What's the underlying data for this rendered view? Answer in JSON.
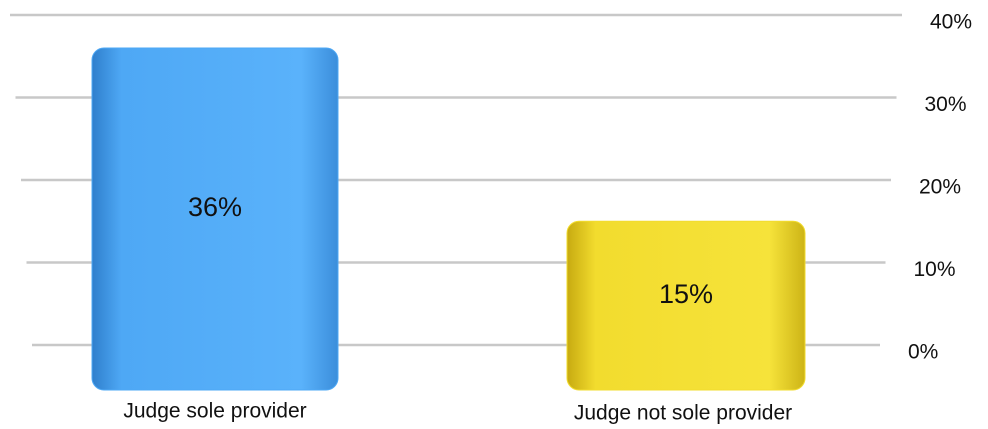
{
  "chart_data": {
    "type": "bar",
    "categories": [
      "Judge sole provider",
      "Judge not sole provider"
    ],
    "values": [
      36,
      15
    ],
    "value_labels": [
      "36%",
      "15%"
    ],
    "colors": [
      "#4ea8f5",
      "#f2dc2e"
    ],
    "ylim": [
      0,
      40
    ],
    "yticks": [
      {
        "value": 0,
        "label": "0%"
      },
      {
        "value": 10,
        "label": "10%"
      },
      {
        "value": 20,
        "label": "20%"
      },
      {
        "value": 30,
        "label": "30%"
      },
      {
        "value": 40,
        "label": "40%"
      }
    ],
    "grid": true
  }
}
